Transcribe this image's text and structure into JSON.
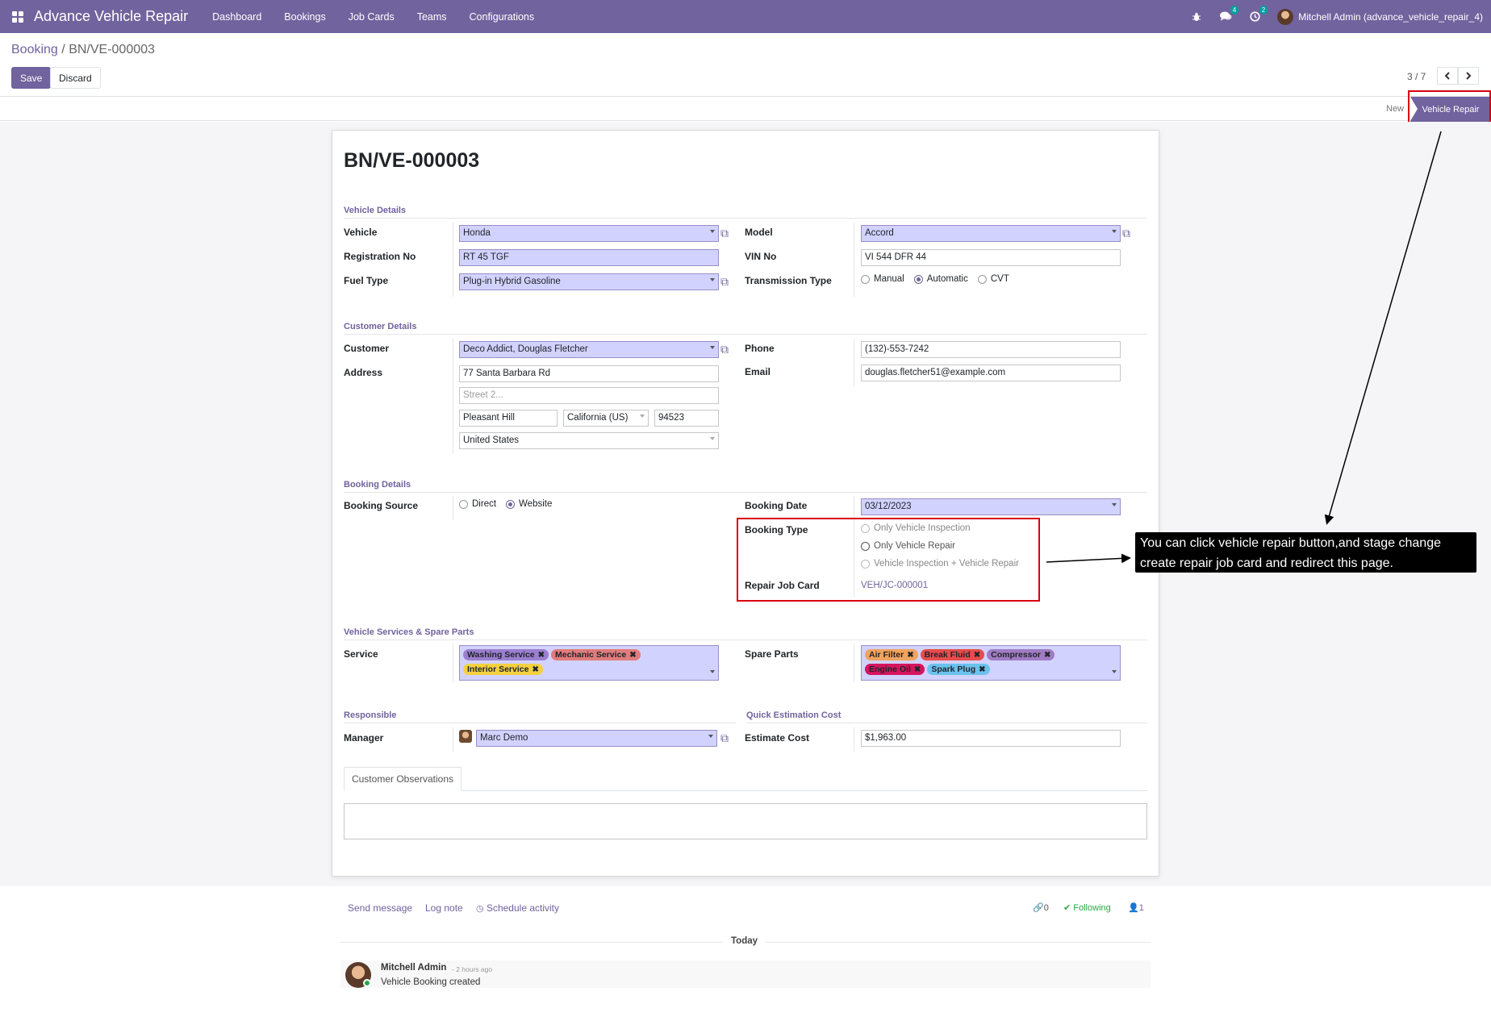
{
  "navbar": {
    "app_title": "Advance Vehicle Repair",
    "menu": [
      "Dashboard",
      "Bookings",
      "Job Cards",
      "Teams",
      "Configurations"
    ],
    "messages_count": "4",
    "activities_count": "2",
    "user": "Mitchell Admin (advance_vehicle_repair_4)"
  },
  "breadcrumb": {
    "parent": "Booking",
    "separator": "/",
    "current": "BN/VE-000003"
  },
  "actions": {
    "save": "Save",
    "discard": "Discard"
  },
  "pager": {
    "value": "3 / 7"
  },
  "statusbar": {
    "new": "New",
    "active": "Vehicle Repair"
  },
  "record": {
    "title": "BN/VE-000003",
    "vehicle_details": {
      "section": "Vehicle Details",
      "vehicle_label": "Vehicle",
      "vehicle": "Honda",
      "reg_label": "Registration No",
      "reg": "RT 45 TGF",
      "fuel_label": "Fuel Type",
      "fuel": "Plug-in Hybrid Gasoline",
      "model_label": "Model",
      "model": "Accord",
      "vin_label": "VIN No",
      "vin": "VI 544 DFR 44",
      "trans_label": "Transmission Type",
      "trans_options": [
        "Manual",
        "Automatic",
        "CVT"
      ],
      "trans_selected": "Automatic"
    },
    "customer_details": {
      "section": "Customer Details",
      "customer_label": "Customer",
      "customer": "Deco Addict, Douglas Fletcher",
      "address_label": "Address",
      "street": "77 Santa Barbara Rd",
      "street2_placeholder": "Street 2...",
      "city": "Pleasant Hill",
      "state": "California (US)",
      "zip": "94523",
      "country": "United States",
      "phone_label": "Phone",
      "phone": "(132)-553-7242",
      "email_label": "Email",
      "email": "douglas.fletcher51@example.com"
    },
    "booking_details": {
      "section": "Booking Details",
      "source_label": "Booking Source",
      "source_options": [
        "Direct",
        "Website"
      ],
      "source_selected": "Website",
      "date_label": "Booking Date",
      "date": "03/12/2023",
      "type_label": "Booking Type",
      "type_options": [
        "Only Vehicle Inspection",
        "Only Vehicle Repair",
        "Vehicle Inspection + Vehicle Repair"
      ],
      "job_card_label": "Repair Job Card",
      "job_card": "VEH/JC-000001"
    },
    "services": {
      "section": "Vehicle Services & Spare Parts",
      "service_label": "Service",
      "service_tags": [
        {
          "name": "Washing Service",
          "color": "#9b7fd0"
        },
        {
          "name": "Mechanic Service",
          "color": "#e27c7c"
        },
        {
          "name": "Interior Service",
          "color": "#f4d03f"
        }
      ],
      "parts_label": "Spare Parts",
      "parts_tags": [
        {
          "name": "Air Filter",
          "color": "#f0a35e"
        },
        {
          "name": "Break Fluid",
          "color": "#e74c4c"
        },
        {
          "name": "Compressor",
          "color": "#a07cc5"
        },
        {
          "name": "Engine Oil",
          "color": "#d6145f"
        },
        {
          "name": "Spark Plug",
          "color": "#6cc1ed"
        }
      ]
    },
    "responsible": {
      "section": "Responsible",
      "manager_label": "Manager",
      "manager": "Marc Demo"
    },
    "estimation": {
      "section": "Quick Estimation Cost",
      "cost_label": "Estimate Cost",
      "cost": "$1,963.00"
    },
    "tab": "Customer Observations"
  },
  "annotation": "You can click vehicle repair button,and stage change create repair job card and redirect this page.",
  "chatter": {
    "send_message": "Send message",
    "log_note": "Log note",
    "schedule_activity": "Schedule activity",
    "attachments": "0",
    "following": "Following",
    "followers": "1",
    "today": "Today",
    "message": {
      "author": "Mitchell Admin",
      "time": "- 2 hours ago",
      "body": "Vehicle Booking created"
    }
  },
  "colors": {
    "brand": "#71639e",
    "required_field": "#d2d2ff",
    "annotation_red": "#d9000d"
  }
}
